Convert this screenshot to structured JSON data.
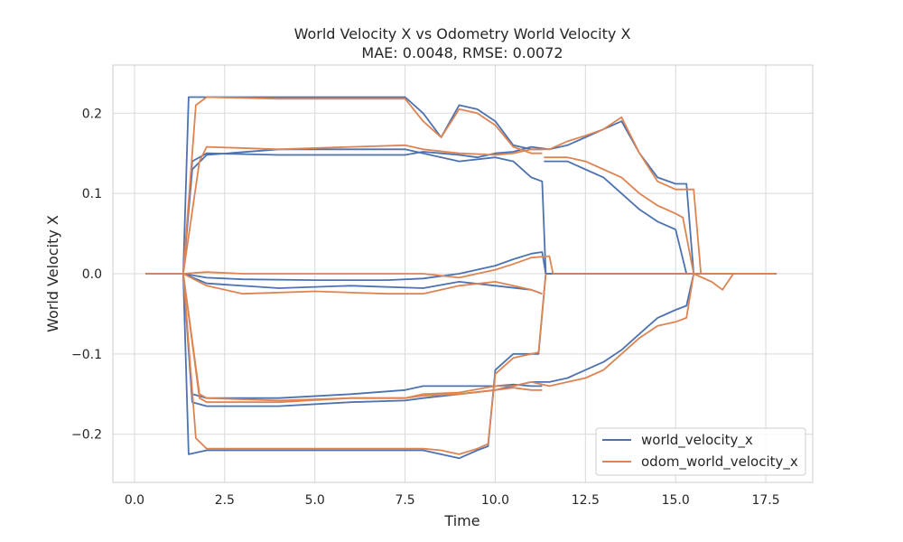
{
  "chart_data": {
    "type": "line",
    "title": "World Velocity X vs Odometry World Velocity X",
    "subtitle": "MAE: 0.0048, RMSE: 0.0072",
    "xlabel": "Time",
    "ylabel": "World Velocity X",
    "xlim": [
      -0.6,
      18.8
    ],
    "ylim": [
      -0.26,
      0.26
    ],
    "xticks": [
      0.0,
      2.5,
      5.0,
      7.5,
      10.0,
      12.5,
      15.0,
      17.5
    ],
    "xtick_labels": [
      "0.0",
      "2.5",
      "5.0",
      "7.5",
      "10.0",
      "12.5",
      "15.0",
      "17.5"
    ],
    "yticks": [
      -0.2,
      -0.1,
      0.0,
      0.1,
      0.2
    ],
    "ytick_labels": [
      "−0.2",
      "−0.1",
      "0.0",
      "0.1",
      "0.2"
    ],
    "grid": true,
    "legend_position": "bottom-right",
    "series": [
      {
        "name": "world_velocity_x",
        "color": "#4C72B0",
        "traces": [
          {
            "x": [
              0.3,
              1.35,
              1.5,
              2.0,
              4.0,
              6.0,
              7.5,
              8.0,
              8.5,
              9.0,
              9.5,
              10.0,
              10.5,
              11.0,
              11.3
            ],
            "y": [
              0,
              0,
              0.22,
              0.22,
              0.22,
              0.22,
              0.22,
              0.2,
              0.17,
              0.21,
              0.205,
              0.19,
              0.16,
              0.155,
              0.155
            ]
          },
          {
            "x": [
              1.35,
              1.6,
              2.0,
              4.0,
              6.0,
              7.5,
              8.0,
              8.5,
              9.0,
              9.5,
              10.0,
              10.5,
              11.0,
              11.5,
              12.0,
              12.5,
              13.0,
              13.5,
              14.0,
              14.5,
              15.0,
              15.3,
              15.5,
              17.5
            ],
            "y": [
              0,
              0.14,
              0.15,
              0.148,
              0.148,
              0.148,
              0.152,
              0.15,
              0.148,
              0.145,
              0.15,
              0.152,
              0.158,
              0.155,
              0.16,
              0.17,
              0.18,
              0.19,
              0.15,
              0.12,
              0.112,
              0.112,
              0,
              0
            ]
          },
          {
            "x": [
              1.35,
              1.6,
              2.0,
              4.0,
              6.0,
              7.5,
              8.0,
              9.0,
              10.0,
              10.5,
              11.0,
              11.3,
              11.4,
              17.5
            ],
            "y": [
              0,
              0.13,
              0.148,
              0.155,
              0.155,
              0.155,
              0.15,
              0.14,
              0.145,
              0.14,
              0.12,
              0.115,
              0,
              0
            ]
          },
          {
            "x": [
              11.35,
              12.0,
              12.5,
              13.0,
              13.5,
              14.0,
              14.5,
              15.0,
              15.3
            ],
            "y": [
              0.14,
              0.14,
              0.13,
              0.12,
              0.1,
              0.08,
              0.065,
              0.055,
              0
            ]
          },
          {
            "x": [
              1.35,
              2.0,
              3.0,
              5.0,
              7.0,
              8.0,
              9.0,
              10.0,
              10.5,
              11.0,
              11.3,
              11.4,
              17.5
            ],
            "y": [
              0,
              -0.005,
              -0.007,
              -0.008,
              -0.008,
              -0.006,
              0,
              0.01,
              0.018,
              0.025,
              0.027,
              0,
              0
            ]
          },
          {
            "x": [
              1.35,
              2.0,
              4.0,
              6.0,
              8.0,
              9.0,
              10.0,
              11.0,
              11.3
            ],
            "y": [
              0,
              -0.012,
              -0.018,
              -0.015,
              -0.018,
              -0.01,
              -0.015,
              -0.02,
              -0.025
            ]
          },
          {
            "x": [
              1.35,
              1.6,
              2.0,
              4.0,
              6.0,
              7.5,
              8.0,
              9.0,
              10.0,
              10.5,
              11.0,
              11.3
            ],
            "y": [
              0,
              -0.15,
              -0.155,
              -0.155,
              -0.15,
              -0.145,
              -0.14,
              -0.14,
              -0.14,
              -0.138,
              -0.14,
              -0.14
            ]
          },
          {
            "x": [
              1.35,
              1.6,
              2.0,
              4.0,
              6.0,
              7.5,
              8.0,
              9.0,
              10.0,
              10.5,
              11.0,
              11.5,
              12.0,
              12.5,
              13.0,
              13.5,
              14.0,
              14.5,
              15.0,
              15.3,
              15.5
            ],
            "y": [
              0,
              -0.16,
              -0.165,
              -0.165,
              -0.16,
              -0.158,
              -0.155,
              -0.15,
              -0.145,
              -0.14,
              -0.135,
              -0.135,
              -0.13,
              -0.12,
              -0.11,
              -0.095,
              -0.075,
              -0.055,
              -0.045,
              -0.04,
              0
            ]
          },
          {
            "x": [
              1.35,
              1.5,
              2.0,
              4.0,
              6.0,
              7.5,
              8.0,
              8.5,
              9.0,
              9.5,
              9.8,
              10.0,
              10.5,
              11.0,
              11.2,
              11.4
            ],
            "y": [
              0,
              -0.225,
              -0.22,
              -0.22,
              -0.22,
              -0.22,
              -0.22,
              -0.225,
              -0.23,
              -0.22,
              -0.215,
              -0.12,
              -0.1,
              -0.1,
              -0.1,
              0
            ]
          }
        ]
      },
      {
        "name": "odom_world_velocity_x",
        "color": "#DD8452",
        "traces": [
          {
            "x": [
              0.3,
              1.35,
              1.7,
              2.0,
              4.0,
              6.0,
              7.5,
              8.0,
              8.5,
              9.0,
              9.5,
              10.0,
              10.5,
              11.0,
              11.3
            ],
            "y": [
              0,
              0,
              0.21,
              0.22,
              0.218,
              0.218,
              0.218,
              0.19,
              0.17,
              0.205,
              0.2,
              0.185,
              0.158,
              0.15,
              0.15
            ]
          },
          {
            "x": [
              1.35,
              1.8,
              2.0,
              4.0,
              6.0,
              7.5,
              8.0,
              9.0,
              10.0,
              10.5,
              11.0,
              11.5,
              12.0,
              12.5,
              13.0,
              13.5,
              14.0,
              14.5,
              15.0,
              15.5,
              15.7,
              16.0,
              17.8
            ],
            "y": [
              0,
              0.14,
              0.158,
              0.155,
              0.158,
              0.16,
              0.155,
              0.15,
              0.148,
              0.15,
              0.155,
              0.155,
              0.165,
              0.172,
              0.18,
              0.195,
              0.15,
              0.115,
              0.105,
              0.105,
              0,
              0,
              0
            ]
          },
          {
            "x": [
              11.35,
              12.0,
              12.5,
              13.0,
              13.5,
              14.0,
              14.5,
              15.0,
              15.2,
              15.5
            ],
            "y": [
              0.145,
              0.145,
              0.14,
              0.13,
              0.12,
              0.1,
              0.085,
              0.075,
              0.07,
              0
            ]
          },
          {
            "x": [
              1.35,
              2.0,
              3.0,
              5.0,
              7.0,
              8.0,
              9.0,
              10.0,
              10.5,
              11.0,
              11.5,
              11.6,
              12.0,
              17.8
            ],
            "y": [
              0,
              0.002,
              0,
              0,
              0,
              0,
              -0.005,
              0.005,
              0.012,
              0.02,
              0.022,
              0,
              0,
              0
            ]
          },
          {
            "x": [
              1.35,
              2.0,
              3.0,
              5.0,
              7.0,
              8.0,
              9.0,
              10.0,
              10.5,
              11.0,
              11.3
            ],
            "y": [
              0,
              -0.015,
              -0.025,
              -0.022,
              -0.025,
              -0.025,
              -0.015,
              -0.01,
              -0.015,
              -0.02,
              -0.025
            ]
          },
          {
            "x": [
              1.35,
              1.8,
              2.0,
              4.0,
              6.0,
              7.5,
              8.0,
              9.0,
              10.0,
              10.5,
              11.0,
              11.3
            ],
            "y": [
              0,
              -0.15,
              -0.155,
              -0.158,
              -0.155,
              -0.155,
              -0.152,
              -0.15,
              -0.145,
              -0.142,
              -0.145,
              -0.145
            ]
          },
          {
            "x": [
              1.35,
              1.8,
              2.0,
              4.0,
              6.0,
              7.5,
              8.0,
              9.0,
              10.0,
              10.5,
              11.0,
              11.5,
              12.0,
              12.5,
              13.0,
              13.5,
              14.0,
              14.5,
              15.0,
              15.3,
              15.5,
              16.0,
              16.3,
              16.6,
              17.8
            ],
            "y": [
              0,
              -0.155,
              -0.16,
              -0.16,
              -0.155,
              -0.155,
              -0.15,
              -0.148,
              -0.14,
              -0.14,
              -0.135,
              -0.14,
              -0.135,
              -0.13,
              -0.12,
              -0.1,
              -0.08,
              -0.065,
              -0.06,
              -0.055,
              0,
              -0.01,
              -0.02,
              0,
              0
            ]
          },
          {
            "x": [
              1.35,
              1.7,
              2.0,
              4.0,
              6.0,
              7.5,
              8.0,
              8.5,
              9.0,
              9.5,
              9.8,
              10.0,
              10.5,
              11.0,
              11.2,
              11.4
            ],
            "y": [
              0,
              -0.205,
              -0.218,
              -0.218,
              -0.218,
              -0.218,
              -0.218,
              -0.22,
              -0.225,
              -0.218,
              -0.212,
              -0.125,
              -0.105,
              -0.1,
              -0.098,
              0
            ]
          }
        ]
      }
    ]
  }
}
